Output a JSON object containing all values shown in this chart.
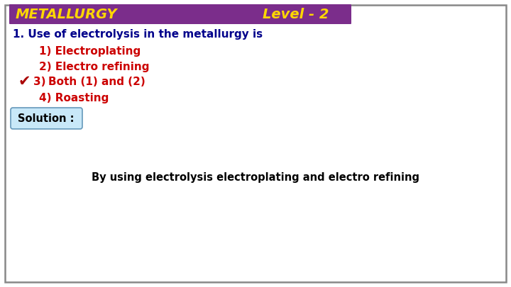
{
  "title_text": "METALLURGY",
  "level_text": "Level - 2",
  "title_bg_color": "#7B2D8B",
  "title_text_color": "#FFD700",
  "level_text_color": "#FFD700",
  "question_text": "1. Use of electrolysis in the metallurgy is",
  "question_color": "#00008B",
  "options": [
    "1) Electroplating",
    "2) Electro refining",
    "3) Both (1) and (2)",
    "4) Roasting"
  ],
  "option_color": "#CC0000",
  "correct_option_index": 2,
  "checkmark_color": "#AA0000",
  "solution_label": "Solution :",
  "solution_bg_top": "#C8E8F8",
  "solution_bg_bot": "#87CEEB",
  "solution_text_color": "#000000",
  "solution_border_color": "#6699BB",
  "answer_text": "By using electrolysis electroplating and electro refining",
  "answer_color": "#000000",
  "bg_color": "#FFFFFF",
  "border_color": "#888888"
}
